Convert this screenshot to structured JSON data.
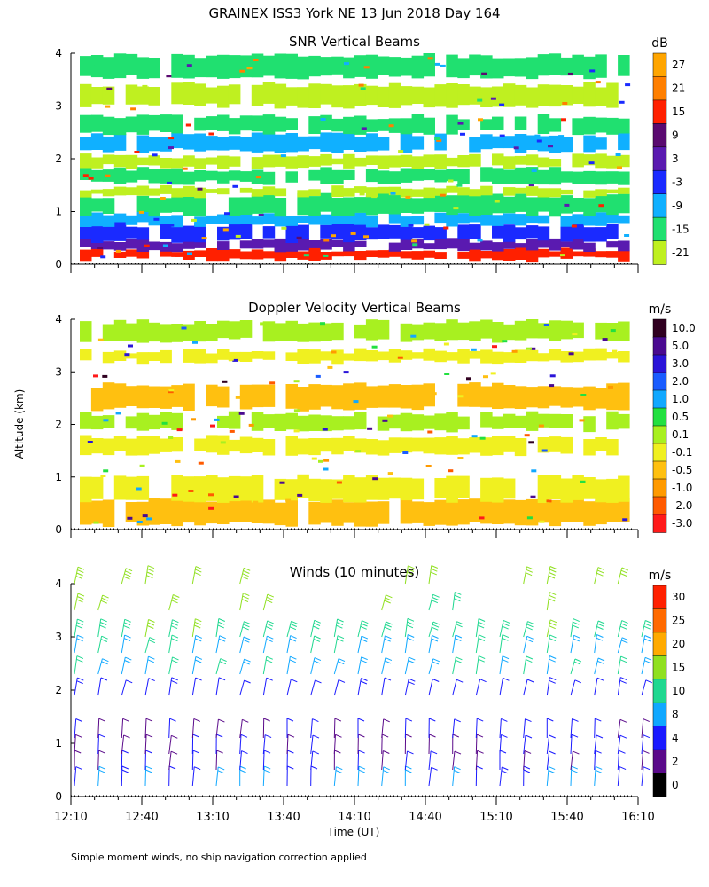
{
  "figure": {
    "main_title": "GRAINEX ISS3 York NE  13 Jun 2018 Day 164",
    "ylabel": "Altitude (km)",
    "xlabel": "Time (UT)",
    "footnote": "Simple moment winds, no ship navigation correction applied"
  },
  "chart_data": [
    {
      "type": "heatmap",
      "title": "SNR Vertical Beams",
      "ylim": [
        0,
        4
      ],
      "yticks": [
        "0",
        "1",
        "2",
        "3",
        "4"
      ],
      "xlim": [
        "12:10",
        "16:10"
      ],
      "colorbar_unit": "dB",
      "colorbar_labels": [
        "27",
        "21",
        "15",
        "9",
        "3",
        "-3",
        "-9",
        "-15",
        "-21"
      ],
      "colorbar_colors": [
        "#ffa500",
        "#ff7f00",
        "#ff2000",
        "#5a0a70",
        "#5a1ab0",
        "#1a2aff",
        "#10b0ff",
        "#20e070",
        "#bff020"
      ],
      "bands": [
        {
          "from": 0.1,
          "to": 0.28,
          "color": "#ff2000"
        },
        {
          "from": 0.28,
          "to": 0.45,
          "color": "#5a1ab0"
        },
        {
          "from": 0.45,
          "to": 0.75,
          "color": "#1a2aff"
        },
        {
          "from": 0.75,
          "to": 0.95,
          "color": "#10b0ff"
        },
        {
          "from": 0.95,
          "to": 1.3,
          "color": "#20e070"
        },
        {
          "from": 1.3,
          "to": 1.45,
          "color": "#bff020"
        },
        {
          "from": 1.55,
          "to": 1.8,
          "color": "#20e070"
        },
        {
          "from": 1.85,
          "to": 2.05,
          "color": "#bff020"
        },
        {
          "from": 2.15,
          "to": 2.45,
          "color": "#10b0ff"
        },
        {
          "from": 2.5,
          "to": 2.8,
          "color": "#20e070"
        },
        {
          "from": 3.0,
          "to": 3.4,
          "color": "#bff020"
        },
        {
          "from": 3.55,
          "to": 3.95,
          "color": "#20e070"
        }
      ]
    },
    {
      "type": "heatmap",
      "title": "Doppler Velocity Vertical Beams",
      "ylim": [
        0,
        4
      ],
      "yticks": [
        "0",
        "1",
        "2",
        "3",
        "4"
      ],
      "xlim": [
        "12:10",
        "16:10"
      ],
      "colorbar_unit": "m/s",
      "colorbar_labels": [
        "10.0",
        "5.0",
        "3.0",
        "2.0",
        "1.0",
        "0.5",
        "0.1",
        "-0.1",
        "-0.5",
        "-1.0",
        "-2.0",
        "-3.0"
      ],
      "colorbar_colors": [
        "#300020",
        "#4a0a90",
        "#2a14d8",
        "#1a5cff",
        "#10a8ff",
        "#22e040",
        "#a8f020",
        "#f0f020",
        "#ffc010",
        "#ff9a00",
        "#ff5a00",
        "#ff1a1a"
      ],
      "bands": [
        {
          "from": 0.1,
          "to": 0.55,
          "color": "#ffc010"
        },
        {
          "from": 0.55,
          "to": 1.0,
          "color": "#f0f020"
        },
        {
          "from": 1.45,
          "to": 1.75,
          "color": "#f0f020"
        },
        {
          "from": 1.9,
          "to": 2.2,
          "color": "#a8f020"
        },
        {
          "from": 2.3,
          "to": 2.75,
          "color": "#ffc010"
        },
        {
          "from": 3.2,
          "to": 3.4,
          "color": "#f0f020"
        },
        {
          "from": 3.6,
          "to": 3.95,
          "color": "#a8f020"
        }
      ]
    },
    {
      "type": "scatter",
      "title": "Winds (10 minutes)",
      "ylim": [
        0,
        4
      ],
      "yticks": [
        "0",
        "1",
        "2",
        "3",
        "4"
      ],
      "xlim": [
        "12:10",
        "16:10"
      ],
      "xticks": [
        "12:10",
        "12:40",
        "13:10",
        "13:40",
        "14:10",
        "14:40",
        "15:10",
        "15:40",
        "16:10"
      ],
      "colorbar_unit": "m/s",
      "colorbar_labels": [
        "30",
        "25",
        "20",
        "15",
        "10",
        "8",
        "4",
        "2",
        "0"
      ],
      "colorbar_colors": [
        "#ff2000",
        "#ff6a00",
        "#ffaa00",
        "#90e020",
        "#20d890",
        "#10a8ff",
        "#1a1aff",
        "#5a0a8a",
        "#000000"
      ],
      "barb_times_min": [
        0,
        10,
        20,
        30,
        40,
        50,
        60,
        70,
        80,
        90,
        100,
        110,
        120,
        130,
        140,
        150,
        160,
        170,
        180,
        190,
        200,
        210,
        220,
        230,
        240
      ],
      "barb_altitudes_km": [
        0.2,
        0.5,
        0.8,
        1.1,
        1.9,
        2.3,
        2.7,
        3.0,
        3.5,
        4.0
      ],
      "speed_profile": [
        {
          "altitude_km": 0.2,
          "speed_ms": 8
        },
        {
          "altitude_km": 0.5,
          "speed_ms": 4
        },
        {
          "altitude_km": 0.8,
          "speed_ms": 4
        },
        {
          "altitude_km": 1.1,
          "speed_ms": 4
        },
        {
          "altitude_km": 1.9,
          "speed_ms": 6
        },
        {
          "altitude_km": 2.3,
          "speed_ms": 10
        },
        {
          "altitude_km": 2.7,
          "speed_ms": 10
        },
        {
          "altitude_km": 3.0,
          "speed_ms": 14
        },
        {
          "altitude_km": 3.5,
          "speed_ms": 16
        },
        {
          "altitude_km": 4.0,
          "speed_ms": 18
        }
      ]
    }
  ]
}
